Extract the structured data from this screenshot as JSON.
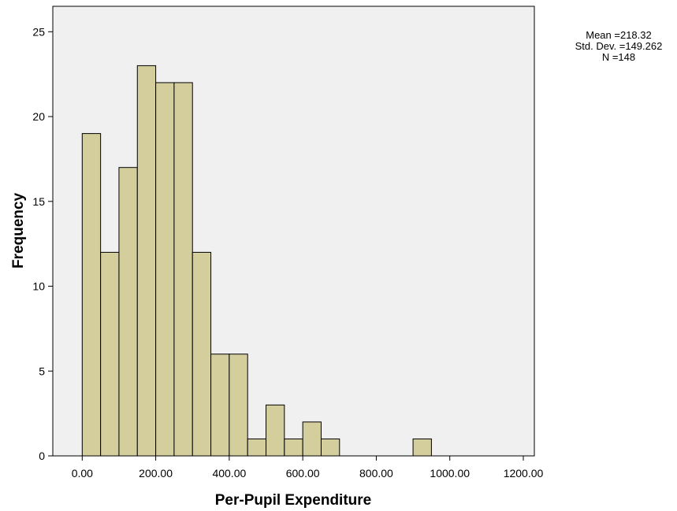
{
  "chart_data": {
    "type": "bar",
    "subtype": "histogram",
    "xlabel": "Per-Pupil Expenditure",
    "ylabel": "Frequency",
    "xlim": [
      -80,
      1230
    ],
    "ylim": [
      0,
      26.5
    ],
    "x_ticks": [
      0,
      200,
      400,
      600,
      800,
      1000,
      1200
    ],
    "x_tick_labels": [
      "0.00",
      "200.00",
      "400.00",
      "600.00",
      "800.00",
      "1000.00",
      "1200.00"
    ],
    "y_ticks": [
      0,
      5,
      10,
      15,
      20,
      25
    ],
    "y_tick_labels": [
      "0",
      "5",
      "10",
      "15",
      "20",
      "25"
    ],
    "bin_width": 50,
    "bins": [
      {
        "start": 0,
        "end": 50,
        "count": 19
      },
      {
        "start": 50,
        "end": 100,
        "count": 12
      },
      {
        "start": 100,
        "end": 150,
        "count": 17
      },
      {
        "start": 150,
        "end": 200,
        "count": 23
      },
      {
        "start": 200,
        "end": 250,
        "count": 22
      },
      {
        "start": 250,
        "end": 300,
        "count": 22
      },
      {
        "start": 300,
        "end": 350,
        "count": 12
      },
      {
        "start": 350,
        "end": 400,
        "count": 6
      },
      {
        "start": 400,
        "end": 450,
        "count": 6
      },
      {
        "start": 450,
        "end": 500,
        "count": 1
      },
      {
        "start": 500,
        "end": 550,
        "count": 3
      },
      {
        "start": 550,
        "end": 600,
        "count": 1
      },
      {
        "start": 600,
        "end": 650,
        "count": 2
      },
      {
        "start": 650,
        "end": 700,
        "count": 1
      },
      {
        "start": 900,
        "end": 950,
        "count": 1
      }
    ],
    "grid": false,
    "colors": {
      "bar_fill": "#d3ce9c",
      "bar_stroke": "#000000",
      "plot_background": "#f0f0f0"
    }
  },
  "stats": {
    "mean": "Mean =218.32",
    "std_dev": "Std. Dev. =149.262",
    "n": "N =148"
  }
}
